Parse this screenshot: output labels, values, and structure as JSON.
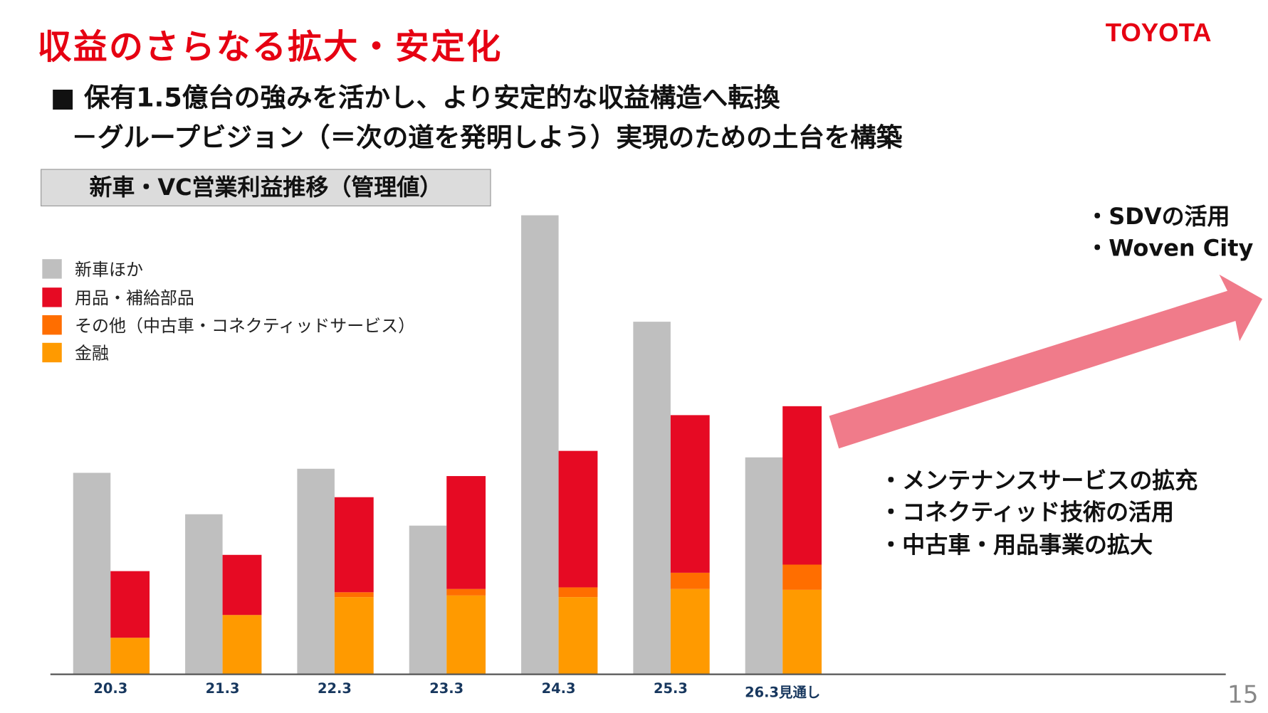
{
  "header": {
    "title": "収益のさらなる拡大・安定化",
    "logo_text": "TOYOTA"
  },
  "subtitle": {
    "line1": "■ 保有1.5億台の強みを活かし、より安定的な収益構造へ転換",
    "line2": "－グループビジョン（＝次の道を発明しよう）実現のための土台を構築"
  },
  "notes_top": [
    "・SDVの活用",
    "・Woven City"
  ],
  "notes_bottom": [
    "・メンテナンスサービスの拡充",
    "・コネクティッド技術の活用",
    "・中古車・用品事業の拡大"
  ],
  "page_number": "15",
  "colors": {
    "new_car": "#BFBFBF",
    "parts": "#E60A23",
    "other": "#FF6E00",
    "finance": "#FF9A00",
    "arrow": "#F07B8A",
    "title": "#E60012"
  },
  "chart_data": {
    "type": "bar",
    "title": "新車・VC営業利益推移（管理値）",
    "categories": [
      "20.3",
      "21.3",
      "22.3",
      "23.3",
      "24.3",
      "25.3",
      "26.3見通し"
    ],
    "legend": [
      "新車ほか",
      "用品・補給部品",
      "その他（中古車・コネクティッドサービス）",
      "金融"
    ],
    "legend_position": "top-left",
    "grid": false,
    "y_axis_shown": false,
    "series": [
      {
        "name": "新車ほか",
        "stack": "new_car",
        "values": [
          248,
          197,
          253,
          183,
          565,
          434,
          267
        ]
      },
      {
        "name": "金融",
        "stack": "value_chain",
        "values": [
          45,
          73,
          95,
          97,
          95,
          105,
          104
        ]
      },
      {
        "name": "その他（中古車・コネクティッドサービス）",
        "stack": "value_chain",
        "values": [
          0,
          0,
          6,
          8,
          12,
          20,
          31
        ]
      },
      {
        "name": "用品・補給部品",
        "stack": "value_chain",
        "values": [
          82,
          74,
          117,
          139,
          168,
          194,
          195
        ]
      }
    ]
  }
}
